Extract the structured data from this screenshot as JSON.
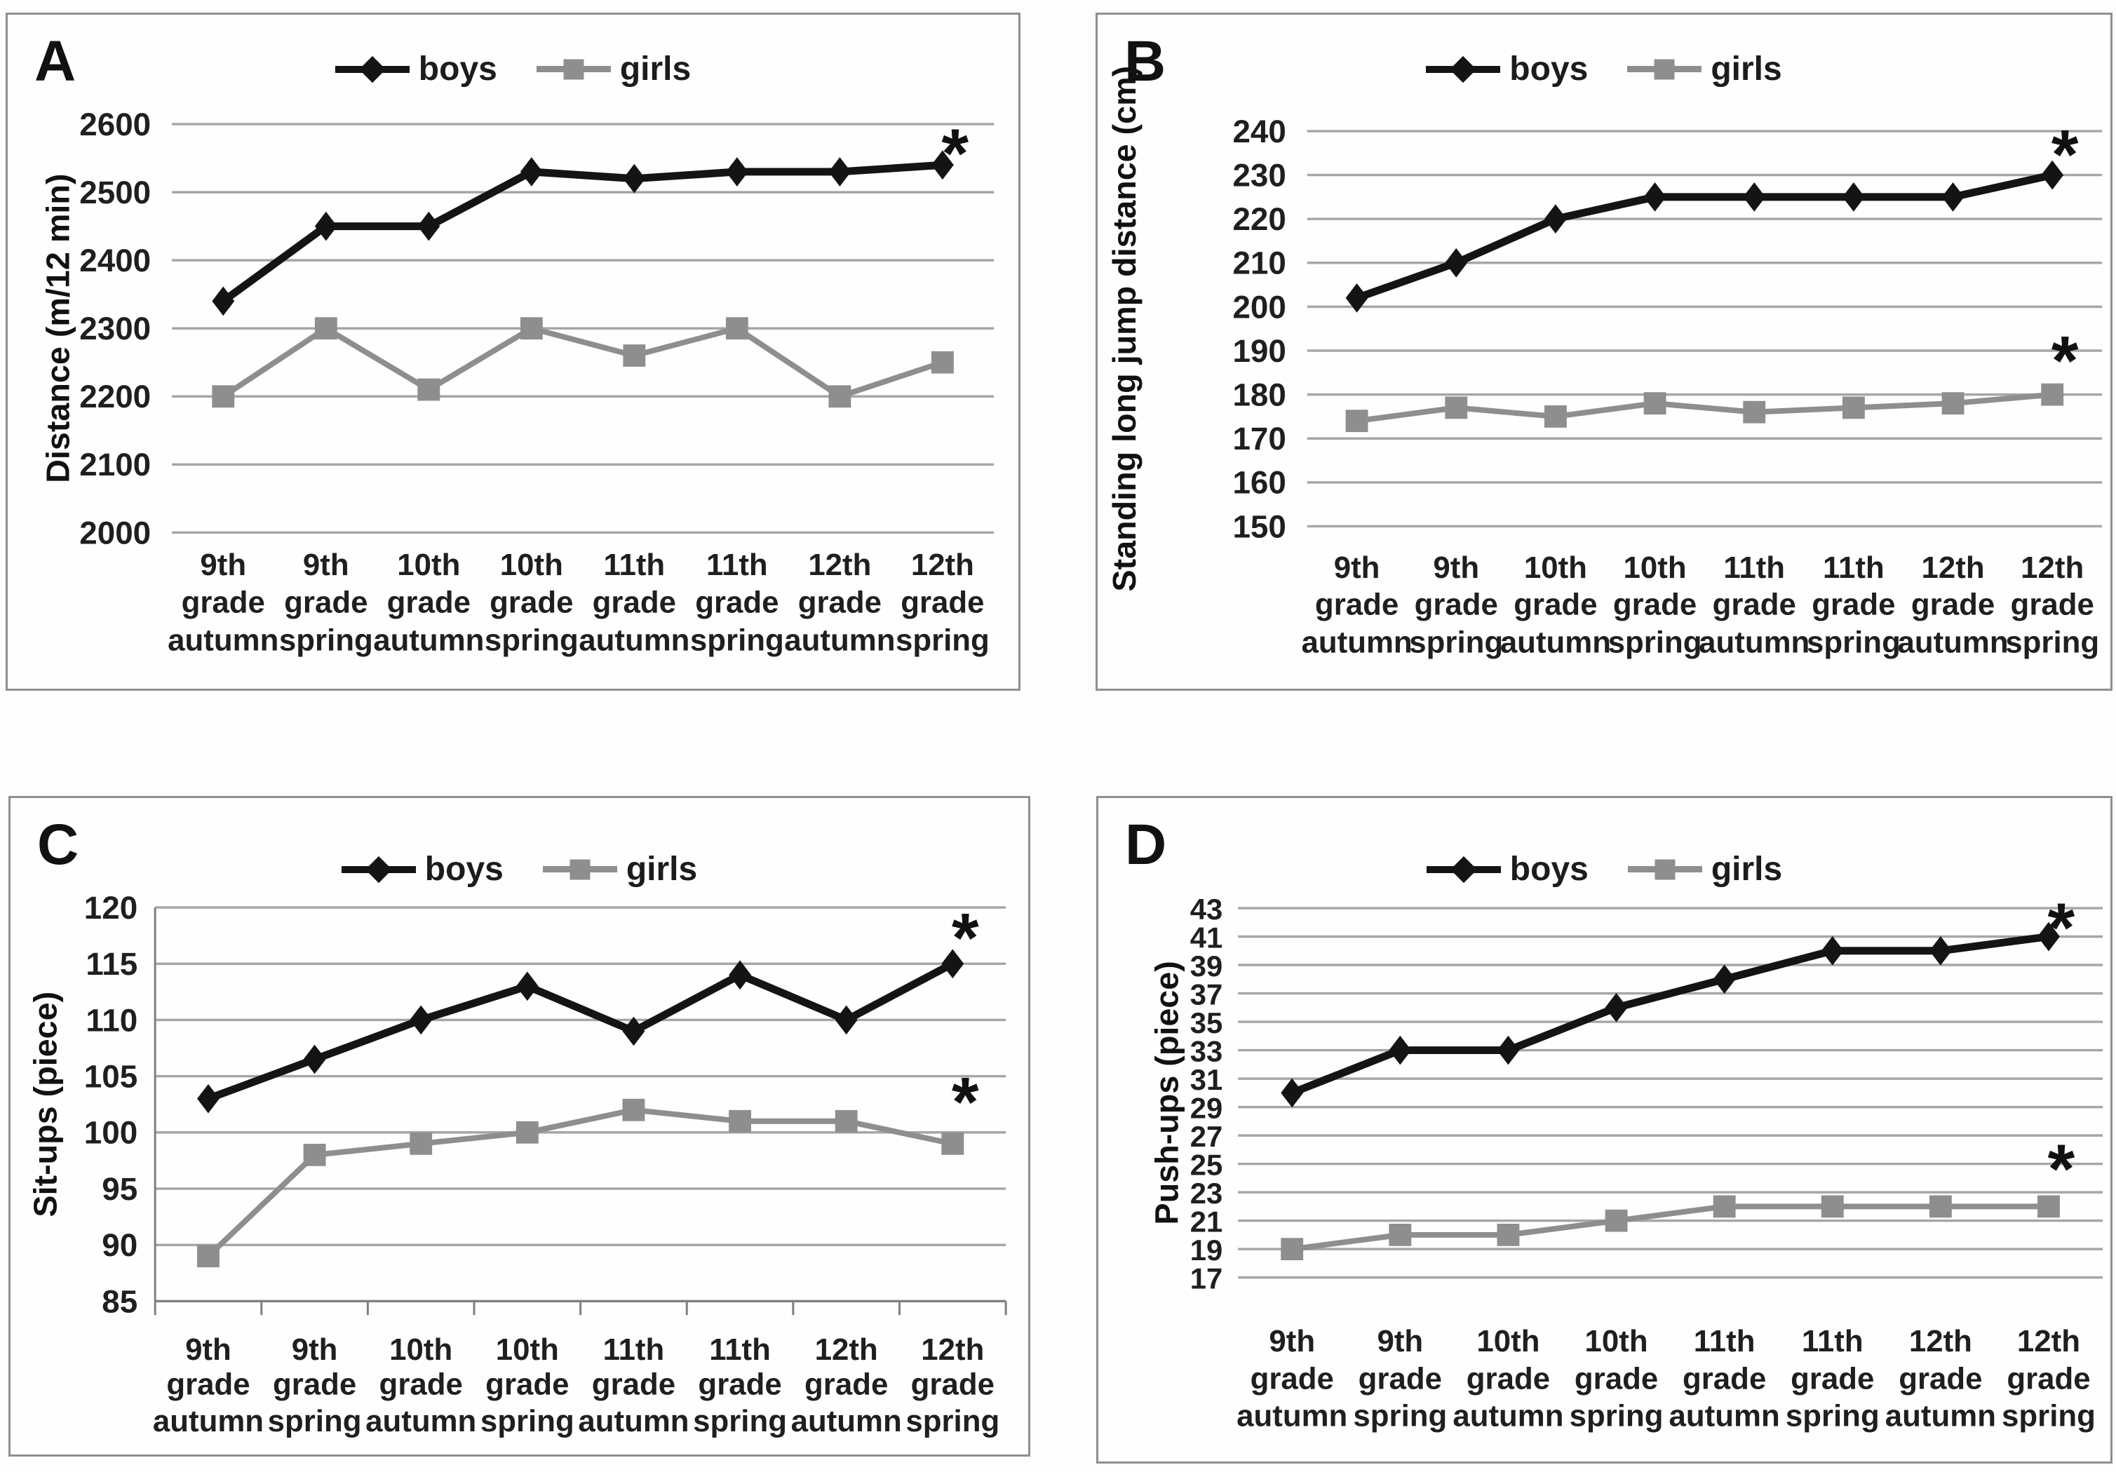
{
  "figure": {
    "annotation_symbol": "*",
    "legend_labels": [
      "boys",
      "girls"
    ],
    "colors": {
      "boys": "#141414",
      "girls": "#8e8e8e",
      "grid": "#a6a6a6",
      "axis": "#7f7f7f",
      "text": "#1f1f1f",
      "annotation": "#111111",
      "panel_border": "#8f8f8f"
    }
  },
  "chart_data": [
    {
      "type": "line",
      "panel": "A",
      "title": "",
      "xlabel": "",
      "ylabel": "Distance (m/12 min)",
      "ylim": [
        2000,
        2600
      ],
      "yticks": [
        2000,
        2100,
        2200,
        2300,
        2400,
        2500,
        2600
      ],
      "grid": true,
      "legend_position": "top-center",
      "categories": [
        "9th grade autumn",
        "9th grade spring",
        "10th grade autumn",
        "10th grade spring",
        "11th grade autumn",
        "11th grade spring",
        "12th grade autumn",
        "12th grade spring"
      ],
      "series": [
        {
          "name": "boys",
          "marker": "diamond",
          "color": "#141414",
          "values": [
            2340,
            2450,
            2450,
            2530,
            2520,
            2530,
            2530,
            2540
          ],
          "star_y": 2575
        },
        {
          "name": "girls",
          "marker": "square",
          "color": "#8e8e8e",
          "values": [
            2200,
            2300,
            2210,
            2300,
            2260,
            2300,
            2200,
            2250
          ],
          "star_y": null
        }
      ]
    },
    {
      "type": "line",
      "panel": "B",
      "title": "",
      "xlabel": "",
      "ylabel": "Standing long jump distance (cm)",
      "ylim": [
        150,
        240
      ],
      "yticks": [
        150,
        160,
        170,
        180,
        190,
        200,
        210,
        220,
        230,
        240
      ],
      "grid": true,
      "legend_position": "top-center",
      "categories": [
        "9th grade autumn",
        "9th grade spring",
        "10th grade autumn",
        "10th grade spring",
        "11th grade autumn",
        "11th grade spring",
        "12th grade autumn",
        "12th grade spring"
      ],
      "series": [
        {
          "name": "boys",
          "marker": "diamond",
          "color": "#141414",
          "values": [
            202,
            210,
            220,
            225,
            225,
            225,
            225,
            230
          ],
          "star_y": 237.5
        },
        {
          "name": "girls",
          "marker": "square",
          "color": "#8e8e8e",
          "values": [
            174,
            177,
            175,
            178,
            176,
            177,
            178,
            180
          ],
          "star_y": 190.5
        }
      ]
    },
    {
      "type": "line",
      "panel": "C",
      "title": "",
      "xlabel": "",
      "ylabel": "Sit-ups (piece)",
      "ylim": [
        85,
        120
      ],
      "yticks": [
        85,
        90,
        95,
        100,
        105,
        110,
        115,
        120
      ],
      "grid": true,
      "legend_position": "top-center",
      "categories": [
        "9th grade autumn",
        "9th grade spring",
        "10th grade autumn",
        "10th grade spring",
        "11th grade autumn",
        "11th grade spring",
        "12th grade autumn",
        "12th grade spring"
      ],
      "series": [
        {
          "name": "boys",
          "marker": "diamond",
          "color": "#141414",
          "values": [
            103,
            106.5,
            110,
            113,
            109,
            114,
            110,
            115
          ],
          "star_y": 118.4
        },
        {
          "name": "girls",
          "marker": "square",
          "color": "#8e8e8e",
          "values": [
            89,
            98,
            99,
            100,
            102,
            101,
            101,
            99
          ],
          "star_y": 103.8
        }
      ]
    },
    {
      "type": "line",
      "panel": "D",
      "title": "",
      "xlabel": "",
      "ylabel": "Push-ups (piece)",
      "ylim": [
        17,
        43
      ],
      "yticks": [
        17,
        19,
        21,
        23,
        25,
        27,
        29,
        31,
        33,
        35,
        37,
        39,
        41,
        43
      ],
      "grid": true,
      "legend_position": "top-center",
      "categories": [
        "9th grade autumn",
        "9th grade spring",
        "10th grade autumn",
        "10th grade spring",
        "11th grade autumn",
        "11th grade spring",
        "12th grade autumn",
        "12th grade spring"
      ],
      "series": [
        {
          "name": "boys",
          "marker": "diamond",
          "color": "#141414",
          "values": [
            30,
            33,
            33,
            36,
            38,
            40,
            40,
            41
          ],
          "star_y": 42.5
        },
        {
          "name": "girls",
          "marker": "square",
          "color": "#8e8e8e",
          "values": [
            19,
            20,
            20,
            21,
            22,
            22,
            22,
            22
          ],
          "star_y": 25.5
        }
      ]
    }
  ]
}
